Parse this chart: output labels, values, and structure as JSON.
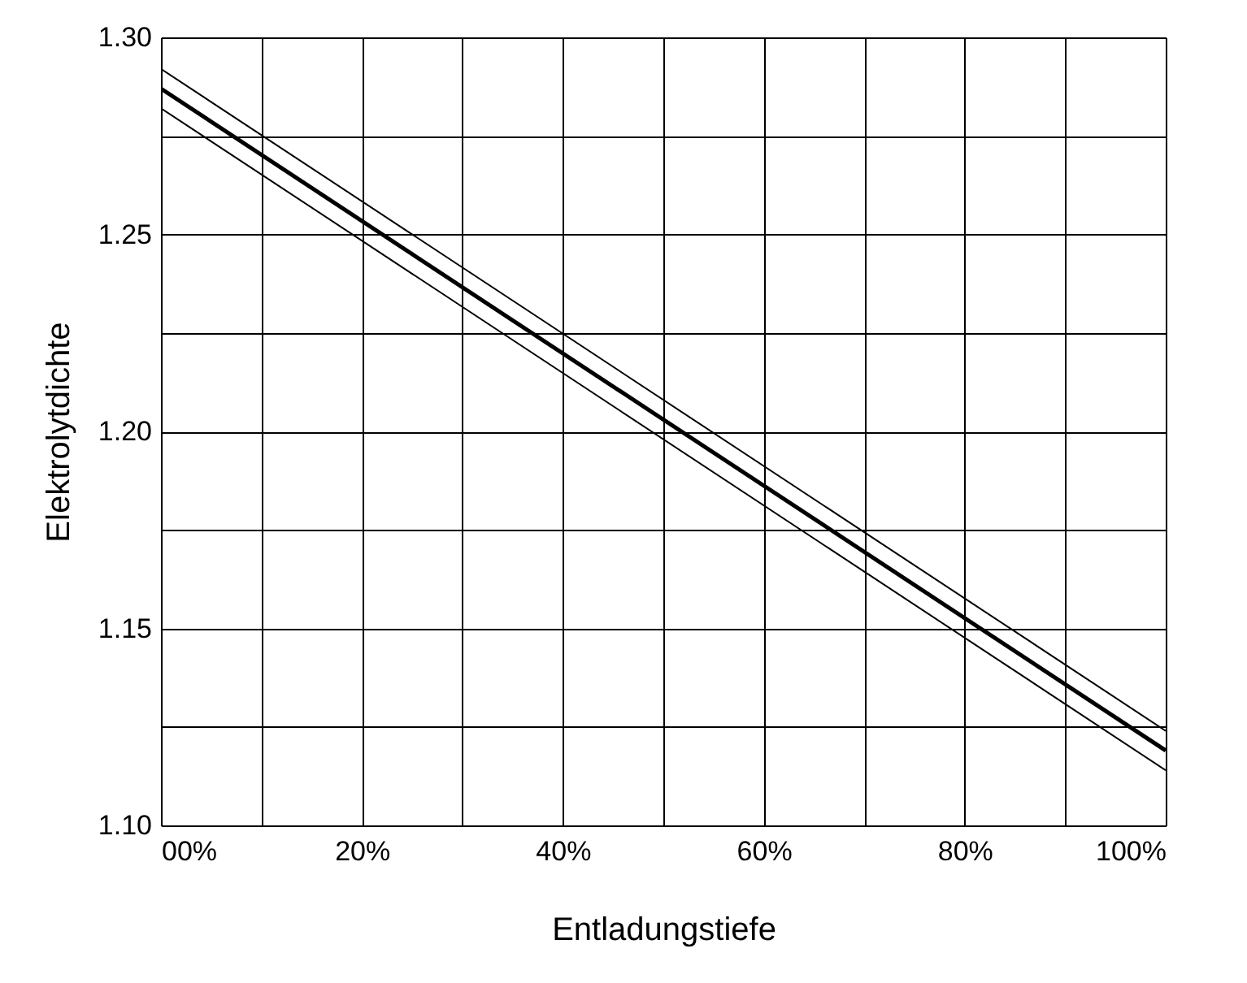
{
  "chart_data": {
    "type": "line",
    "xlabel": "Entladungstiefe",
    "ylabel": "Elektrolytdichte",
    "x": [
      0,
      100
    ],
    "series": [
      {
        "color": "#000000",
        "values": [
          1.287,
          1.119
        ]
      },
      {
        "color": "#000000",
        "values": [
          1.292,
          1.124
        ]
      },
      {
        "color": "#000000",
        "values": [
          1.282,
          1.114
        ]
      }
    ],
    "xlim": [
      0,
      100
    ],
    "xticks": [
      {
        "value": 0,
        "label": "00%"
      },
      {
        "value": 10,
        "label": null
      },
      {
        "value": 20,
        "label": "20%"
      },
      {
        "value": 30,
        "label": null
      },
      {
        "value": 40,
        "label": "40%"
      },
      {
        "value": 50,
        "label": null
      },
      {
        "value": 60,
        "label": "60%"
      },
      {
        "value": 70,
        "label": null
      },
      {
        "value": 80,
        "label": "80%"
      },
      {
        "value": 90,
        "label": null
      },
      {
        "value": 100,
        "label": "100%"
      }
    ],
    "ylim": [
      1.1,
      1.3
    ],
    "yticks": [
      {
        "value": 1.1,
        "label": "1.10"
      },
      {
        "value": 1.125,
        "label": null
      },
      {
        "value": 1.15,
        "label": "1.15"
      },
      {
        "value": 1.175,
        "label": null
      },
      {
        "value": 1.2,
        "label": "1.20"
      },
      {
        "value": 1.225,
        "label": null
      },
      {
        "value": 1.25,
        "label": "1.25"
      },
      {
        "value": 1.275,
        "label": null
      },
      {
        "value": 1.3,
        "label": "1.30"
      }
    ],
    "grid": true,
    "marker": "none",
    "line_style": "solid"
  }
}
